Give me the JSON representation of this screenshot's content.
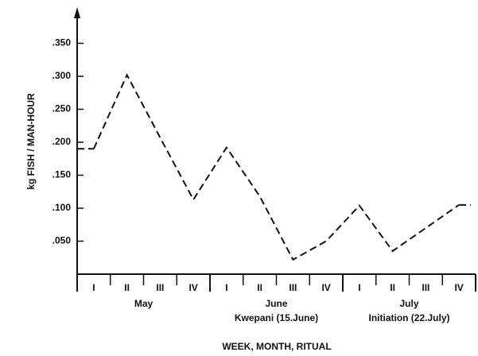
{
  "chart_data": {
    "type": "line",
    "y_label": "kg FISH / MAN-HOUR",
    "x_label": "WEEK, MONTH, RITUAL",
    "categories": [
      "I",
      "II",
      "III",
      "IV",
      "I",
      "II",
      "III",
      "IV",
      "I",
      "II",
      "III",
      "IV"
    ],
    "groups": [
      {
        "label": "May"
      },
      {
        "label": "June",
        "ritual": "Kwepani (15.June)"
      },
      {
        "label": "July",
        "ritual": "Initiation (22.July)"
      }
    ],
    "values": [
      0.19,
      0.302,
      0.207,
      0.113,
      0.192,
      0.118,
      0.022,
      0.05,
      0.104,
      0.035,
      0.07,
      0.105
    ],
    "color": "#111111",
    "ylim": [
      0,
      0.4
    ],
    "yticks": [
      {
        "value": 0.05,
        "label": ".050"
      },
      {
        "value": 0.1,
        "label": ".100"
      },
      {
        "value": 0.15,
        "label": ".150"
      },
      {
        "value": 0.2,
        "label": ".200"
      },
      {
        "value": 0.25,
        "label": ".250"
      },
      {
        "value": 0.3,
        "label": ".300"
      },
      {
        "value": 0.35,
        "label": ".350"
      }
    ]
  }
}
